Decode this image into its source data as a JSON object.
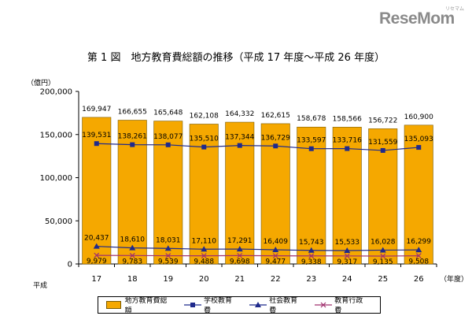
{
  "logo": {
    "text": "ReseMom",
    "subtext": "リセマム"
  },
  "title": "第 1 図　地方教育費総額の推移（平成 17 年度～平成 26 年度）",
  "chart_data": {
    "type": "bar",
    "title": "第 1 図　地方教育費総額の推移（平成 17 年度～平成 26 年度）",
    "y_unit_label": "（億円）",
    "x_prefix_label": "平成",
    "x_unit_label": "（年度）",
    "categories": [
      "17",
      "18",
      "19",
      "20",
      "21",
      "22",
      "23",
      "24",
      "25",
      "26"
    ],
    "ylim": [
      0,
      200000
    ],
    "y_ticks": [
      "0",
      "50,000",
      "100,000",
      "150,000",
      "200,000"
    ],
    "y_tick_values": [
      0,
      50000,
      100000,
      150000,
      200000
    ],
    "grid": false,
    "legend_position": "bottom",
    "series": [
      {
        "name": "地方教育費総額",
        "kind": "bar",
        "color": "#f5a800",
        "values": [
          169947,
          166655,
          165648,
          162108,
          164332,
          162615,
          158678,
          158566,
          156722,
          160900
        ],
        "labels": [
          "169,947",
          "166,655",
          "165,648",
          "162,108",
          "164,332",
          "162,615",
          "158,678",
          "158,566",
          "156,722",
          "160,900"
        ]
      },
      {
        "name": "学校教育費",
        "kind": "line",
        "marker": "square",
        "color": "#1f2a8c",
        "values": [
          139531,
          138261,
          138077,
          135510,
          137344,
          136729,
          133597,
          133716,
          131559,
          135093
        ],
        "labels": [
          "139,531",
          "138,261",
          "138,077",
          "135,510",
          "137,344",
          "136,729",
          "133,597",
          "133,716",
          "131,559",
          "135,093"
        ]
      },
      {
        "name": "社会教育費",
        "kind": "line",
        "marker": "triangle",
        "color": "#1f2a8c",
        "values": [
          20437,
          18610,
          18031,
          17110,
          17291,
          16409,
          15743,
          15533,
          16028,
          16299
        ],
        "labels": [
          "20,437",
          "18,610",
          "18,031",
          "17,110",
          "17,291",
          "16,409",
          "15,743",
          "15,533",
          "16,028",
          "16,299"
        ]
      },
      {
        "name": "教育行政費",
        "kind": "line",
        "marker": "x",
        "color": "#a0306e",
        "values": [
          9979,
          9783,
          9539,
          9488,
          9698,
          9477,
          9338,
          9317,
          9135,
          9508
        ],
        "labels": [
          "9,979",
          "9,783",
          "9,539",
          "9,488",
          "9,698",
          "9,477",
          "9,338",
          "9,317",
          "9,135",
          "9,508"
        ]
      }
    ]
  }
}
